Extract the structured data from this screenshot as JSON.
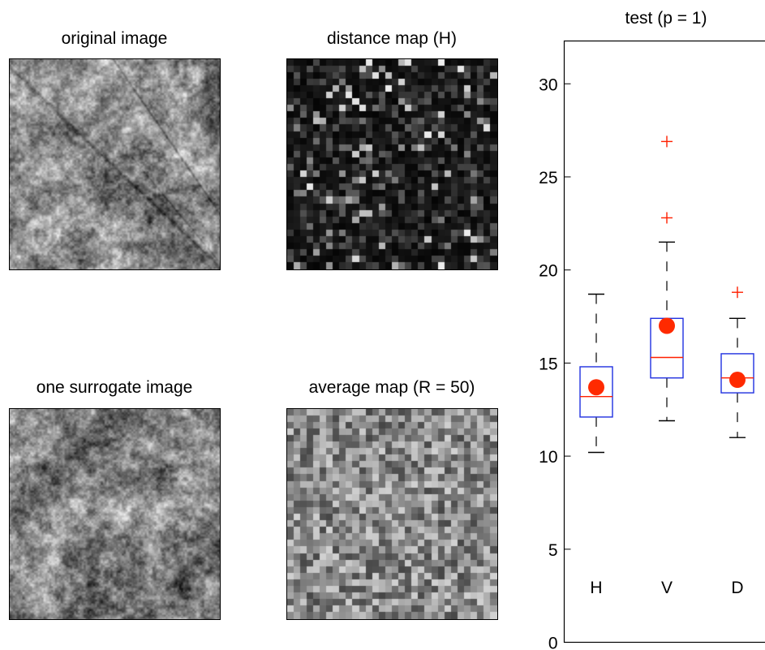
{
  "panels": {
    "original": {
      "title": "original image"
    },
    "distance": {
      "title": "distance map (H)"
    },
    "surrogate": {
      "title": "one surrogate image"
    },
    "average": {
      "title": "average map (R = 50)"
    }
  },
  "chart_data": {
    "type": "box",
    "title": "test (p = 1)",
    "xlabel": "",
    "ylabel": "",
    "categories": [
      "H",
      "V",
      "D"
    ],
    "ylim": [
      0,
      32.3
    ],
    "yticks": [
      0,
      5,
      10,
      15,
      20,
      25,
      30
    ],
    "grid": false,
    "boxes": [
      {
        "name": "H",
        "whisker_low": 10.2,
        "q1": 12.1,
        "median": 13.2,
        "q3": 14.8,
        "whisker_high": 18.7,
        "outliers": [],
        "marker": 13.7
      },
      {
        "name": "V",
        "whisker_low": 11.9,
        "q1": 14.2,
        "median": 15.3,
        "q3": 17.4,
        "whisker_high": 21.5,
        "outliers": [
          22.8,
          26.9
        ],
        "marker": 17.0
      },
      {
        "name": "D",
        "whisker_low": 11.0,
        "q1": 13.4,
        "median": 14.2,
        "q3": 15.5,
        "whisker_high": 17.4,
        "outliers": [
          18.8
        ],
        "marker": 14.1
      }
    ],
    "colors": {
      "box": "#2030e0",
      "median": "#ff2000",
      "outlier": "#ff2000",
      "marker": "#ff2a00",
      "whisker": "#000000"
    }
  }
}
